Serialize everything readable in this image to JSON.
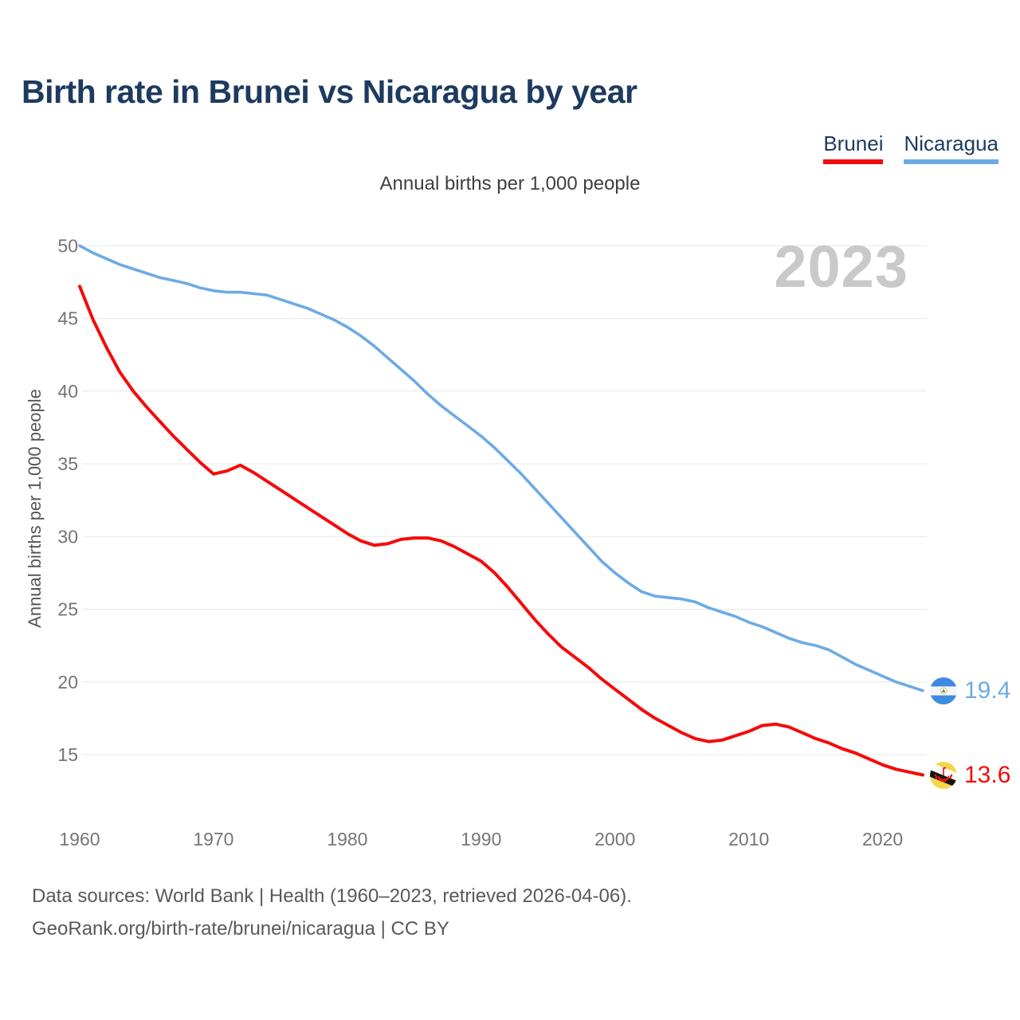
{
  "header": {
    "title": "Birth rate in Brunei vs Nicaragua by year"
  },
  "legend": {
    "items": [
      {
        "label": "Brunei",
        "color": "#f40b0b"
      },
      {
        "label": "Nicaragua",
        "color": "#6cabe4"
      }
    ]
  },
  "subtitle": "Annual births per 1,000 people",
  "watermark": "2023",
  "chart_data": {
    "type": "line",
    "title": "Birth rate in Brunei vs Nicaragua by year",
    "subtitle": "Annual births per 1,000 people",
    "ylabel": "Annual births per 1,000 people",
    "xlabel": "",
    "x": [
      1960,
      1961,
      1962,
      1963,
      1964,
      1965,
      1966,
      1967,
      1968,
      1969,
      1970,
      1971,
      1972,
      1973,
      1974,
      1975,
      1976,
      1977,
      1978,
      1979,
      1980,
      1981,
      1982,
      1983,
      1984,
      1985,
      1986,
      1987,
      1988,
      1989,
      1990,
      1991,
      1992,
      1993,
      1994,
      1995,
      1996,
      1997,
      1998,
      1999,
      2000,
      2001,
      2002,
      2003,
      2004,
      2005,
      2006,
      2007,
      2008,
      2009,
      2010,
      2011,
      2012,
      2013,
      2014,
      2015,
      2016,
      2017,
      2018,
      2019,
      2020,
      2021,
      2022,
      2023
    ],
    "series": [
      {
        "name": "Brunei",
        "color": "#f40b0b",
        "end_label": "13.6",
        "values": [
          47.2,
          44.9,
          43.0,
          41.3,
          40.0,
          38.9,
          37.9,
          36.9,
          36.0,
          35.1,
          34.3,
          34.5,
          34.9,
          34.4,
          33.8,
          33.2,
          32.6,
          32.0,
          31.4,
          30.8,
          30.2,
          29.7,
          29.4,
          29.5,
          29.8,
          29.9,
          29.9,
          29.7,
          29.3,
          28.8,
          28.3,
          27.5,
          26.5,
          25.4,
          24.3,
          23.3,
          22.4,
          21.7,
          21.0,
          20.2,
          19.5,
          18.8,
          18.1,
          17.5,
          17.0,
          16.5,
          16.1,
          15.9,
          16.0,
          16.3,
          16.6,
          17.0,
          17.1,
          16.9,
          16.5,
          16.1,
          15.8,
          15.4,
          15.1,
          14.7,
          14.3,
          14.0,
          13.8,
          13.6
        ]
      },
      {
        "name": "Nicaragua",
        "color": "#6cabe4",
        "end_label": "19.4",
        "values": [
          50.0,
          49.5,
          49.1,
          48.7,
          48.4,
          48.1,
          47.8,
          47.6,
          47.4,
          47.1,
          46.9,
          46.8,
          46.8,
          46.7,
          46.6,
          46.3,
          46.0,
          45.7,
          45.3,
          44.9,
          44.4,
          43.8,
          43.1,
          42.3,
          41.5,
          40.7,
          39.8,
          39.0,
          38.3,
          37.6,
          36.9,
          36.1,
          35.2,
          34.3,
          33.3,
          32.3,
          31.3,
          30.3,
          29.3,
          28.3,
          27.5,
          26.8,
          26.2,
          25.9,
          25.8,
          25.7,
          25.5,
          25.1,
          24.8,
          24.5,
          24.1,
          23.8,
          23.4,
          23.0,
          22.7,
          22.5,
          22.2,
          21.7,
          21.2,
          20.8,
          20.4,
          20.0,
          19.7,
          19.4
        ]
      }
    ],
    "xticks": [
      1960,
      1970,
      1980,
      1990,
      2000,
      2010,
      2020
    ],
    "yticks": [
      15,
      20,
      25,
      30,
      35,
      40,
      45,
      50
    ],
    "ylim": [
      15,
      50
    ],
    "grid": "horizontal",
    "legend_position": "top-right",
    "watermark": "2023"
  },
  "footer": {
    "line1": "Data sources: World Bank | Health (1960–2023, retrieved 2026-04-06).",
    "line2": "GeoRank.org/birth-rate/brunei/nicaragua | CC BY"
  }
}
